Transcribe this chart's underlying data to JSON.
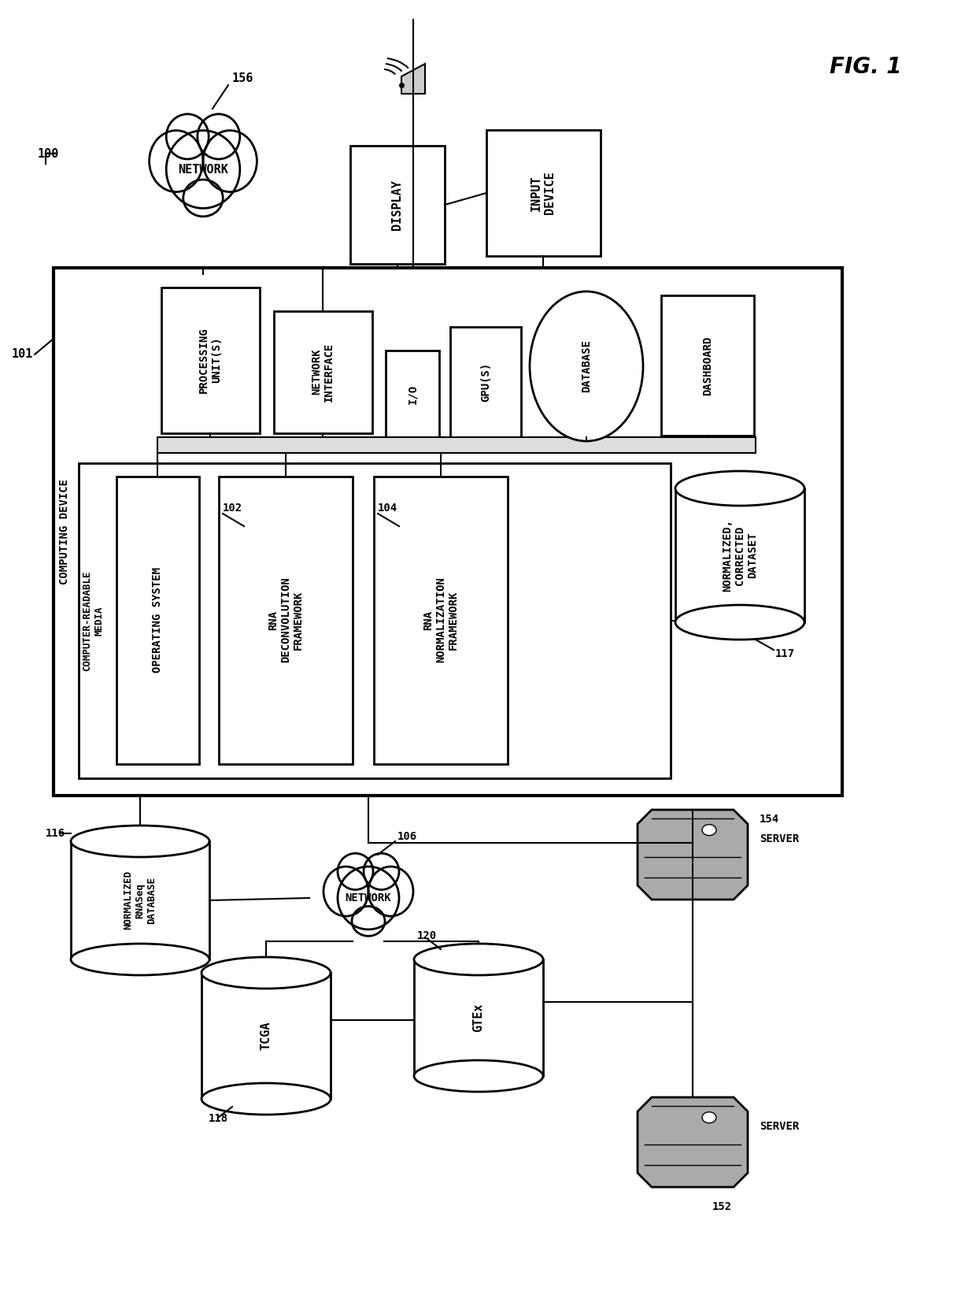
{
  "fig_label": "FIG. 1",
  "background_color": "#ffffff",
  "label_100": "100",
  "label_101": "101",
  "label_156": "156",
  "label_102": "102",
  "label_104": "104",
  "label_106": "106",
  "label_116": "116",
  "label_117": "117",
  "label_118": "118",
  "label_120": "120",
  "label_152": "152",
  "label_154": "154",
  "text_network_top": "NETWORK",
  "text_computing_device": "COMPUTING DEVICE",
  "text_computer_readable": "COMPUTER-READABLE\nMEDIA",
  "text_processing": "PROCESSING\nUNIT(S)",
  "text_network_interface": "NETWORK\nINTERFACE",
  "text_io": "I/O",
  "text_gpu": "GPU(S)",
  "text_database": "DATABASE",
  "text_dashboard": "DASHBOARD",
  "text_display": "DISPLAY",
  "text_input_device": "INPUT\nDEVICE",
  "text_operating_system": "OPERATING SYSTEM",
  "text_rna_deconv": "RNA\nDECONVOLUTION\nFRAMEWORK",
  "text_rna_norm": "RNA\nNORMALIZATION\nFRAMEWORK",
  "text_norm_corrected": "NORMALIZED,\nCORRECTED\nDATASET",
  "text_network_mid": "NETWORK",
  "text_norm_rna": "NORMALIZED\nRNASeq\nDATABASE",
  "text_tcga": "TCGA",
  "text_gtex": "GTEx",
  "text_server1": "SERVER",
  "text_server2": "SERVER"
}
